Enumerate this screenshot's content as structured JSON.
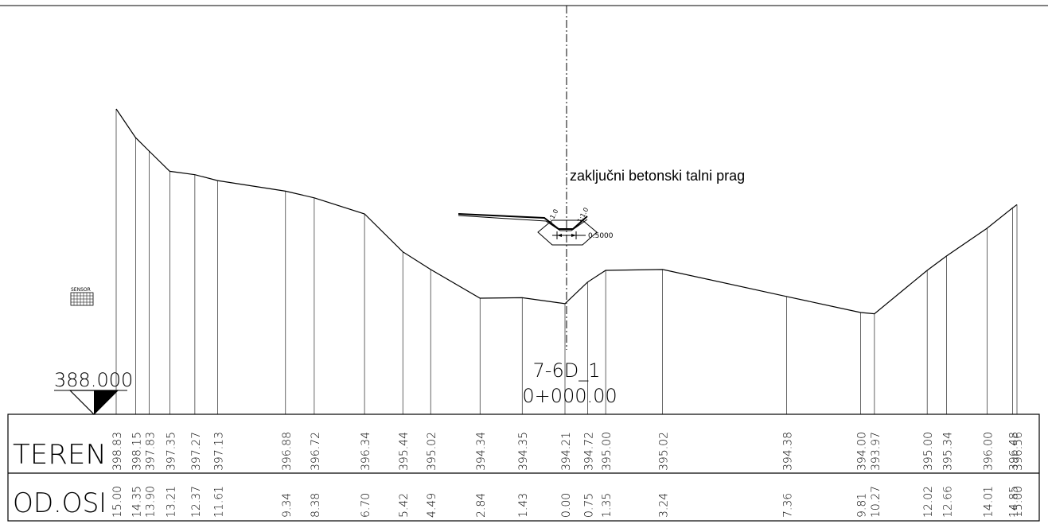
{
  "section": {
    "name": "7-6D_1",
    "station": "0+000.00",
    "datum": "388.000",
    "annotation": "zaključni betonski talni prag",
    "slope_left": "1:1.0",
    "slope_right": "1:1.0",
    "dimension": "0.5000",
    "sensor_label": "SENSOR"
  },
  "table": {
    "row1_label": "TEREN",
    "row2_label": "OD.OSI"
  },
  "points": [
    {
      "elev": "398.83",
      "off": "15.00"
    },
    {
      "elev": "398.15",
      "off": "14.35"
    },
    {
      "elev": "397.83",
      "off": "13.90"
    },
    {
      "elev": "397.35",
      "off": "13.21"
    },
    {
      "elev": "397.27",
      "off": "12.37"
    },
    {
      "elev": "397.13",
      "off": "11.61"
    },
    {
      "elev": "396.88",
      "off": "9.34"
    },
    {
      "elev": "396.72",
      "off": "8.38"
    },
    {
      "elev": "396.34",
      "off": "6.70"
    },
    {
      "elev": "395.44",
      "off": "5.42"
    },
    {
      "elev": "395.02",
      "off": "4.49"
    },
    {
      "elev": "394.34",
      "off": "2.84"
    },
    {
      "elev": "394.35",
      "off": "1.43"
    },
    {
      "elev": "394.21",
      "off": "0.00"
    },
    {
      "elev": "394.72",
      "off": "0.75"
    },
    {
      "elev": "395.00",
      "off": "1.35"
    },
    {
      "elev": "395.02",
      "off": "3.24"
    },
    {
      "elev": "394.38",
      "off": "7.36"
    },
    {
      "elev": "394.00",
      "off": "9.81"
    },
    {
      "elev": "393.97",
      "off": "10.27"
    },
    {
      "elev": "395.00",
      "off": "12.02"
    },
    {
      "elev": "395.34",
      "off": "12.66"
    },
    {
      "elev": "396.00",
      "off": "14.01"
    },
    {
      "elev": "396.48",
      "off": "14.85"
    },
    {
      "elev": "396.56",
      "off": "15.00"
    }
  ]
}
